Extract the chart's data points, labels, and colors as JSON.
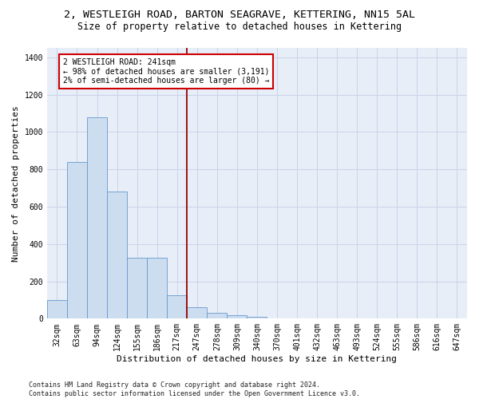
{
  "title": "2, WESTLEIGH ROAD, BARTON SEAGRAVE, KETTERING, NN15 5AL",
  "subtitle": "Size of property relative to detached houses in Kettering",
  "xlabel": "Distribution of detached houses by size in Kettering",
  "ylabel": "Number of detached properties",
  "categories": [
    "32sqm",
    "63sqm",
    "94sqm",
    "124sqm",
    "155sqm",
    "186sqm",
    "217sqm",
    "247sqm",
    "278sqm",
    "309sqm",
    "340sqm",
    "370sqm",
    "401sqm",
    "432sqm",
    "463sqm",
    "493sqm",
    "524sqm",
    "555sqm",
    "586sqm",
    "616sqm",
    "647sqm"
  ],
  "values": [
    100,
    840,
    1080,
    680,
    325,
    325,
    125,
    60,
    30,
    20,
    10,
    0,
    0,
    0,
    0,
    0,
    0,
    0,
    0,
    0,
    0
  ],
  "bar_color": "#cdddf0",
  "bar_edge_color": "#6699cc",
  "ref_line_index": 7,
  "annotation_text": "2 WESTLEIGH ROAD: 241sqm\n← 98% of detached houses are smaller (3,191)\n2% of semi-detached houses are larger (80) →",
  "annotation_box_color": "#ffffff",
  "annotation_box_edge": "#cc0000",
  "ref_line_color": "#990000",
  "ylim": [
    0,
    1450
  ],
  "yticks": [
    0,
    200,
    400,
    600,
    800,
    1000,
    1200,
    1400
  ],
  "grid_color": "#c8d4e8",
  "bg_color": "#e8eef8",
  "footer": "Contains HM Land Registry data © Crown copyright and database right 2024.\nContains public sector information licensed under the Open Government Licence v3.0.",
  "title_fontsize": 9.5,
  "subtitle_fontsize": 8.5,
  "label_fontsize": 8,
  "tick_fontsize": 7,
  "footer_fontsize": 6
}
